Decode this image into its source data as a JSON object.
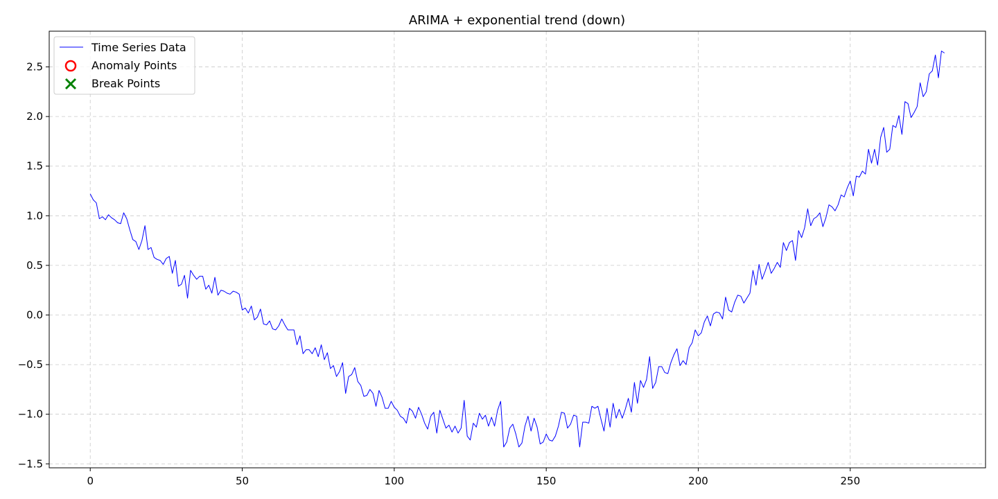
{
  "chart_data": {
    "type": "line",
    "title": "ARIMA + exponential trend (down)",
    "xlabel": "",
    "ylabel": "",
    "xlim": [
      -13.5,
      294.5
    ],
    "ylim": [
      -1.54,
      2.86
    ],
    "xticks": [
      0,
      50,
      100,
      150,
      200,
      250
    ],
    "yticks": [
      -1.5,
      -1.0,
      -0.5,
      0.0,
      0.5,
      1.0,
      1.5,
      2.0,
      2.5
    ],
    "ytick_labels": [
      "−1.5",
      "−1.0",
      "−0.5",
      "0.0",
      "0.5",
      "1.0",
      "1.5",
      "2.0",
      "2.5"
    ],
    "grid": true,
    "legend_position": "top-left",
    "legend": [
      {
        "label": "Time Series Data",
        "marker": "line",
        "color": "#0000ff"
      },
      {
        "label": "Anomaly Points",
        "marker": "circle",
        "color": "#ff0000"
      },
      {
        "label": "Break Points",
        "marker": "x",
        "color": "#008000"
      }
    ],
    "series": [
      {
        "name": "Time Series Data",
        "color": "#0000ff",
        "x_start": 0,
        "x_step": 1,
        "values": [
          1.22,
          1.16,
          1.13,
          0.97,
          0.99,
          0.96,
          1.01,
          0.98,
          0.96,
          0.93,
          0.92,
          1.03,
          0.97,
          0.86,
          0.76,
          0.74,
          0.66,
          0.75,
          0.9,
          0.66,
          0.68,
          0.58,
          0.56,
          0.55,
          0.51,
          0.57,
          0.59,
          0.42,
          0.55,
          0.29,
          0.31,
          0.4,
          0.17,
          0.45,
          0.4,
          0.36,
          0.39,
          0.39,
          0.26,
          0.3,
          0.22,
          0.38,
          0.2,
          0.25,
          0.24,
          0.22,
          0.21,
          0.24,
          0.23,
          0.21,
          0.05,
          0.07,
          0.02,
          0.09,
          -0.05,
          -0.02,
          0.06,
          -0.09,
          -0.1,
          -0.06,
          -0.14,
          -0.15,
          -0.11,
          -0.04,
          -0.1,
          -0.15,
          -0.15,
          -0.15,
          -0.3,
          -0.21,
          -0.39,
          -0.35,
          -0.35,
          -0.39,
          -0.33,
          -0.42,
          -0.3,
          -0.45,
          -0.38,
          -0.54,
          -0.51,
          -0.62,
          -0.57,
          -0.48,
          -0.79,
          -0.62,
          -0.6,
          -0.53,
          -0.67,
          -0.71,
          -0.82,
          -0.81,
          -0.75,
          -0.79,
          -0.92,
          -0.76,
          -0.83,
          -0.94,
          -0.94,
          -0.87,
          -0.93,
          -0.96,
          -1.02,
          -1.04,
          -1.09,
          -0.94,
          -0.97,
          -1.04,
          -0.93,
          -1.0,
          -1.09,
          -1.15,
          -1.02,
          -0.98,
          -1.19,
          -0.96,
          -1.05,
          -1.14,
          -1.11,
          -1.18,
          -1.12,
          -1.19,
          -1.14,
          -0.86,
          -1.22,
          -1.26,
          -1.09,
          -1.13,
          -0.99,
          -1.05,
          -1.01,
          -1.12,
          -1.03,
          -1.12,
          -0.96,
          -0.87,
          -1.33,
          -1.28,
          -1.14,
          -1.1,
          -1.2,
          -1.33,
          -1.29,
          -1.12,
          -1.02,
          -1.17,
          -1.04,
          -1.13,
          -1.3,
          -1.28,
          -1.2,
          -1.26,
          -1.27,
          -1.22,
          -1.12,
          -0.98,
          -0.99,
          -1.14,
          -1.1,
          -1.01,
          -1.02,
          -1.33,
          -1.08,
          -1.08,
          -1.09,
          -0.92,
          -0.94,
          -0.92,
          -1.05,
          -1.17,
          -0.94,
          -1.13,
          -0.89,
          -1.04,
          -0.95,
          -1.04,
          -0.95,
          -0.84,
          -0.98,
          -0.68,
          -0.89,
          -0.66,
          -0.73,
          -0.65,
          -0.42,
          -0.74,
          -0.68,
          -0.52,
          -0.52,
          -0.58,
          -0.59,
          -0.48,
          -0.4,
          -0.34,
          -0.51,
          -0.46,
          -0.5,
          -0.33,
          -0.28,
          -0.15,
          -0.21,
          -0.18,
          -0.07,
          -0.01,
          -0.11,
          0.01,
          0.03,
          0.02,
          -0.04,
          0.18,
          0.05,
          0.03,
          0.13,
          0.2,
          0.19,
          0.12,
          0.17,
          0.22,
          0.45,
          0.3,
          0.51,
          0.36,
          0.44,
          0.53,
          0.42,
          0.47,
          0.53,
          0.48,
          0.73,
          0.65,
          0.73,
          0.75,
          0.55,
          0.85,
          0.78,
          0.88,
          1.07,
          0.9,
          0.97,
          0.99,
          1.03,
          0.89,
          0.98,
          1.11,
          1.09,
          1.05,
          1.11,
          1.21,
          1.19,
          1.28,
          1.35,
          1.2,
          1.4,
          1.39,
          1.45,
          1.42,
          1.67,
          1.53,
          1.67,
          1.51,
          1.79,
          1.89,
          1.64,
          1.67,
          1.91,
          1.89,
          2.01,
          1.82,
          2.15,
          2.13,
          1.99,
          2.04,
          2.1,
          2.34,
          2.2,
          2.25,
          2.43,
          2.46,
          2.62,
          2.39,
          2.66,
          2.64
        ]
      }
    ],
    "anomaly_points": [],
    "break_points": []
  }
}
